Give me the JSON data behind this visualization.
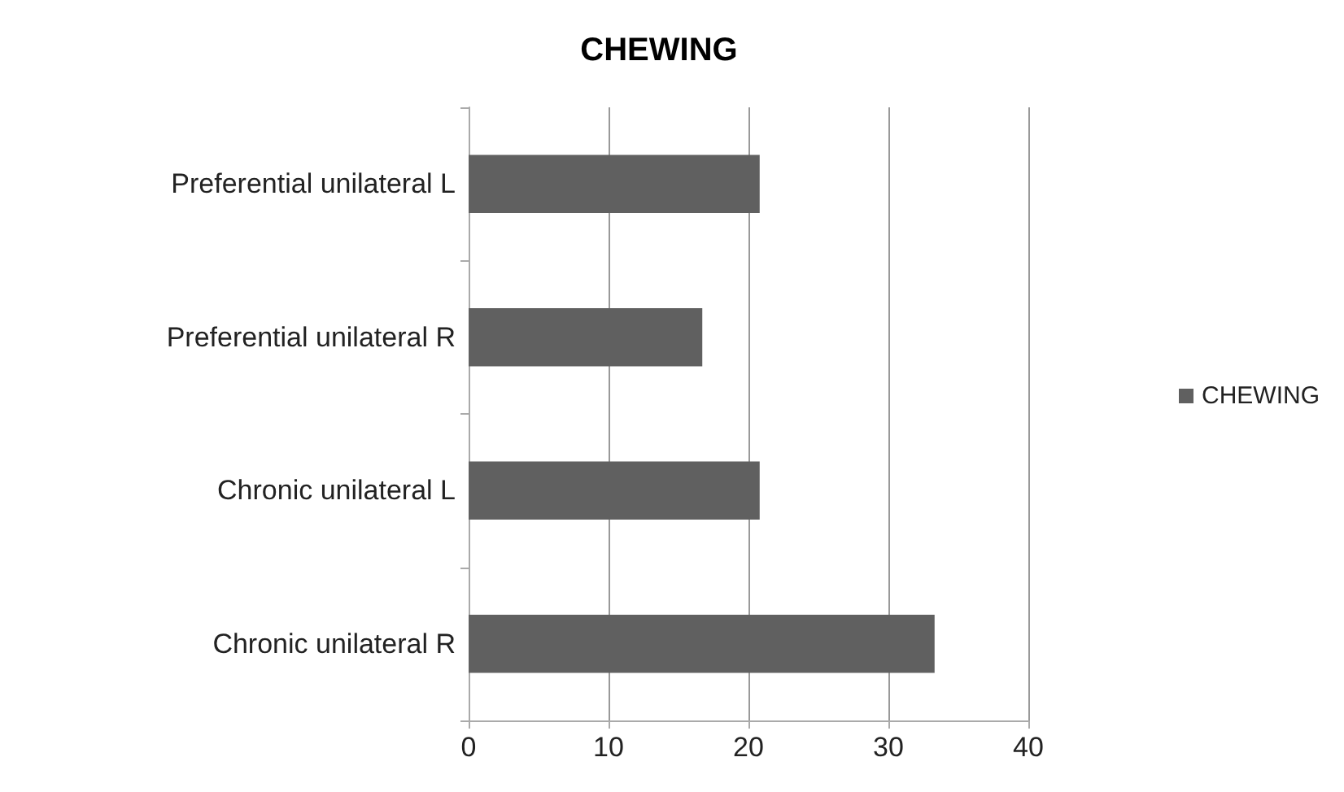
{
  "chart_data": {
    "type": "bar",
    "orientation": "horizontal",
    "title": "CHEWING",
    "categories": [
      "Preferential unilateral L",
      "Preferential unilateral R",
      "Chronic unilateral L",
      "Chronic unilateral R"
    ],
    "series": [
      {
        "name": "CHEWING",
        "color": "#606060",
        "values": [
          20.8,
          16.7,
          20.8,
          33.3
        ]
      }
    ],
    "xlim": [
      0,
      40
    ],
    "xticks": [
      0,
      10,
      20,
      30,
      40
    ],
    "grid": "x",
    "legend": "right"
  }
}
